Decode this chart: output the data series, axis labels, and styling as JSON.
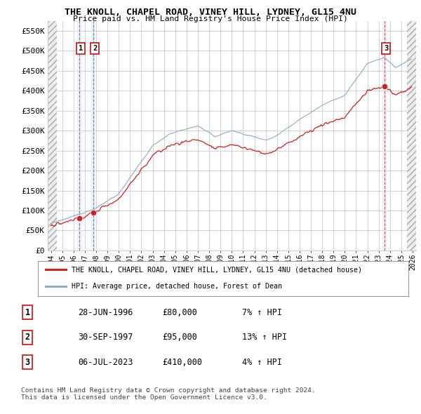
{
  "title": "THE KNOLL, CHAPEL ROAD, VINEY HILL, LYDNEY, GL15 4NU",
  "subtitle": "Price paid vs. HM Land Registry's House Price Index (HPI)",
  "hpi_color": "#89aacc",
  "price_color": "#cc2222",
  "ylabel_values": [
    0,
    50000,
    100000,
    150000,
    200000,
    250000,
    300000,
    350000,
    400000,
    450000,
    500000,
    550000
  ],
  "ylim": [
    0,
    575000
  ],
  "xlim_start": 1993.7,
  "xlim_end": 2026.3,
  "sales": [
    {
      "date_num": 1996.49,
      "price": 80000,
      "label": "1"
    },
    {
      "date_num": 1997.74,
      "price": 95000,
      "label": "2"
    },
    {
      "date_num": 2023.51,
      "price": 410000,
      "label": "3"
    }
  ],
  "legend_entries": [
    {
      "color": "#cc2222",
      "label": "THE KNOLL, CHAPEL ROAD, VINEY HILL, LYDNEY, GL15 4NU (detached house)"
    },
    {
      "color": "#89aacc",
      "label": "HPI: Average price, detached house, Forest of Dean"
    }
  ],
  "table_entries": [
    {
      "num": "1",
      "date": "28-JUN-1996",
      "price": "£80,000",
      "hpi": "7% ↑ HPI"
    },
    {
      "num": "2",
      "date": "30-SEP-1997",
      "price": "£95,000",
      "hpi": "13% ↑ HPI"
    },
    {
      "num": "3",
      "date": "06-JUL-2023",
      "price": "£410,000",
      "hpi": "4% ↑ HPI"
    }
  ],
  "footer": "Contains HM Land Registry data © Crown copyright and database right 2024.\nThis data is licensed under the Open Government Licence v3.0."
}
